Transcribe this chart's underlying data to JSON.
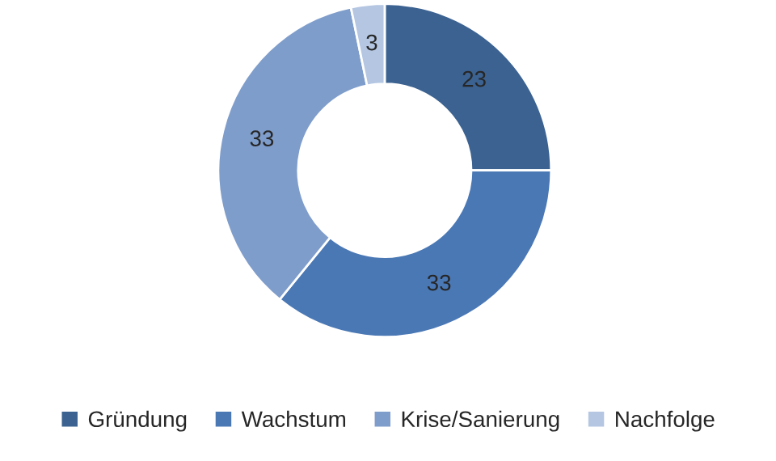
{
  "chart_data": {
    "type": "donut",
    "categories": [
      "Gründung",
      "Wachstum",
      "Krise/Sanierung",
      "Nachfolge"
    ],
    "values": [
      23,
      33,
      33,
      3
    ],
    "colors": [
      "#3b6291",
      "#4a78b5",
      "#7f9dcb",
      "#b4c6e2"
    ],
    "data_labels": true,
    "legend": "bottom"
  }
}
